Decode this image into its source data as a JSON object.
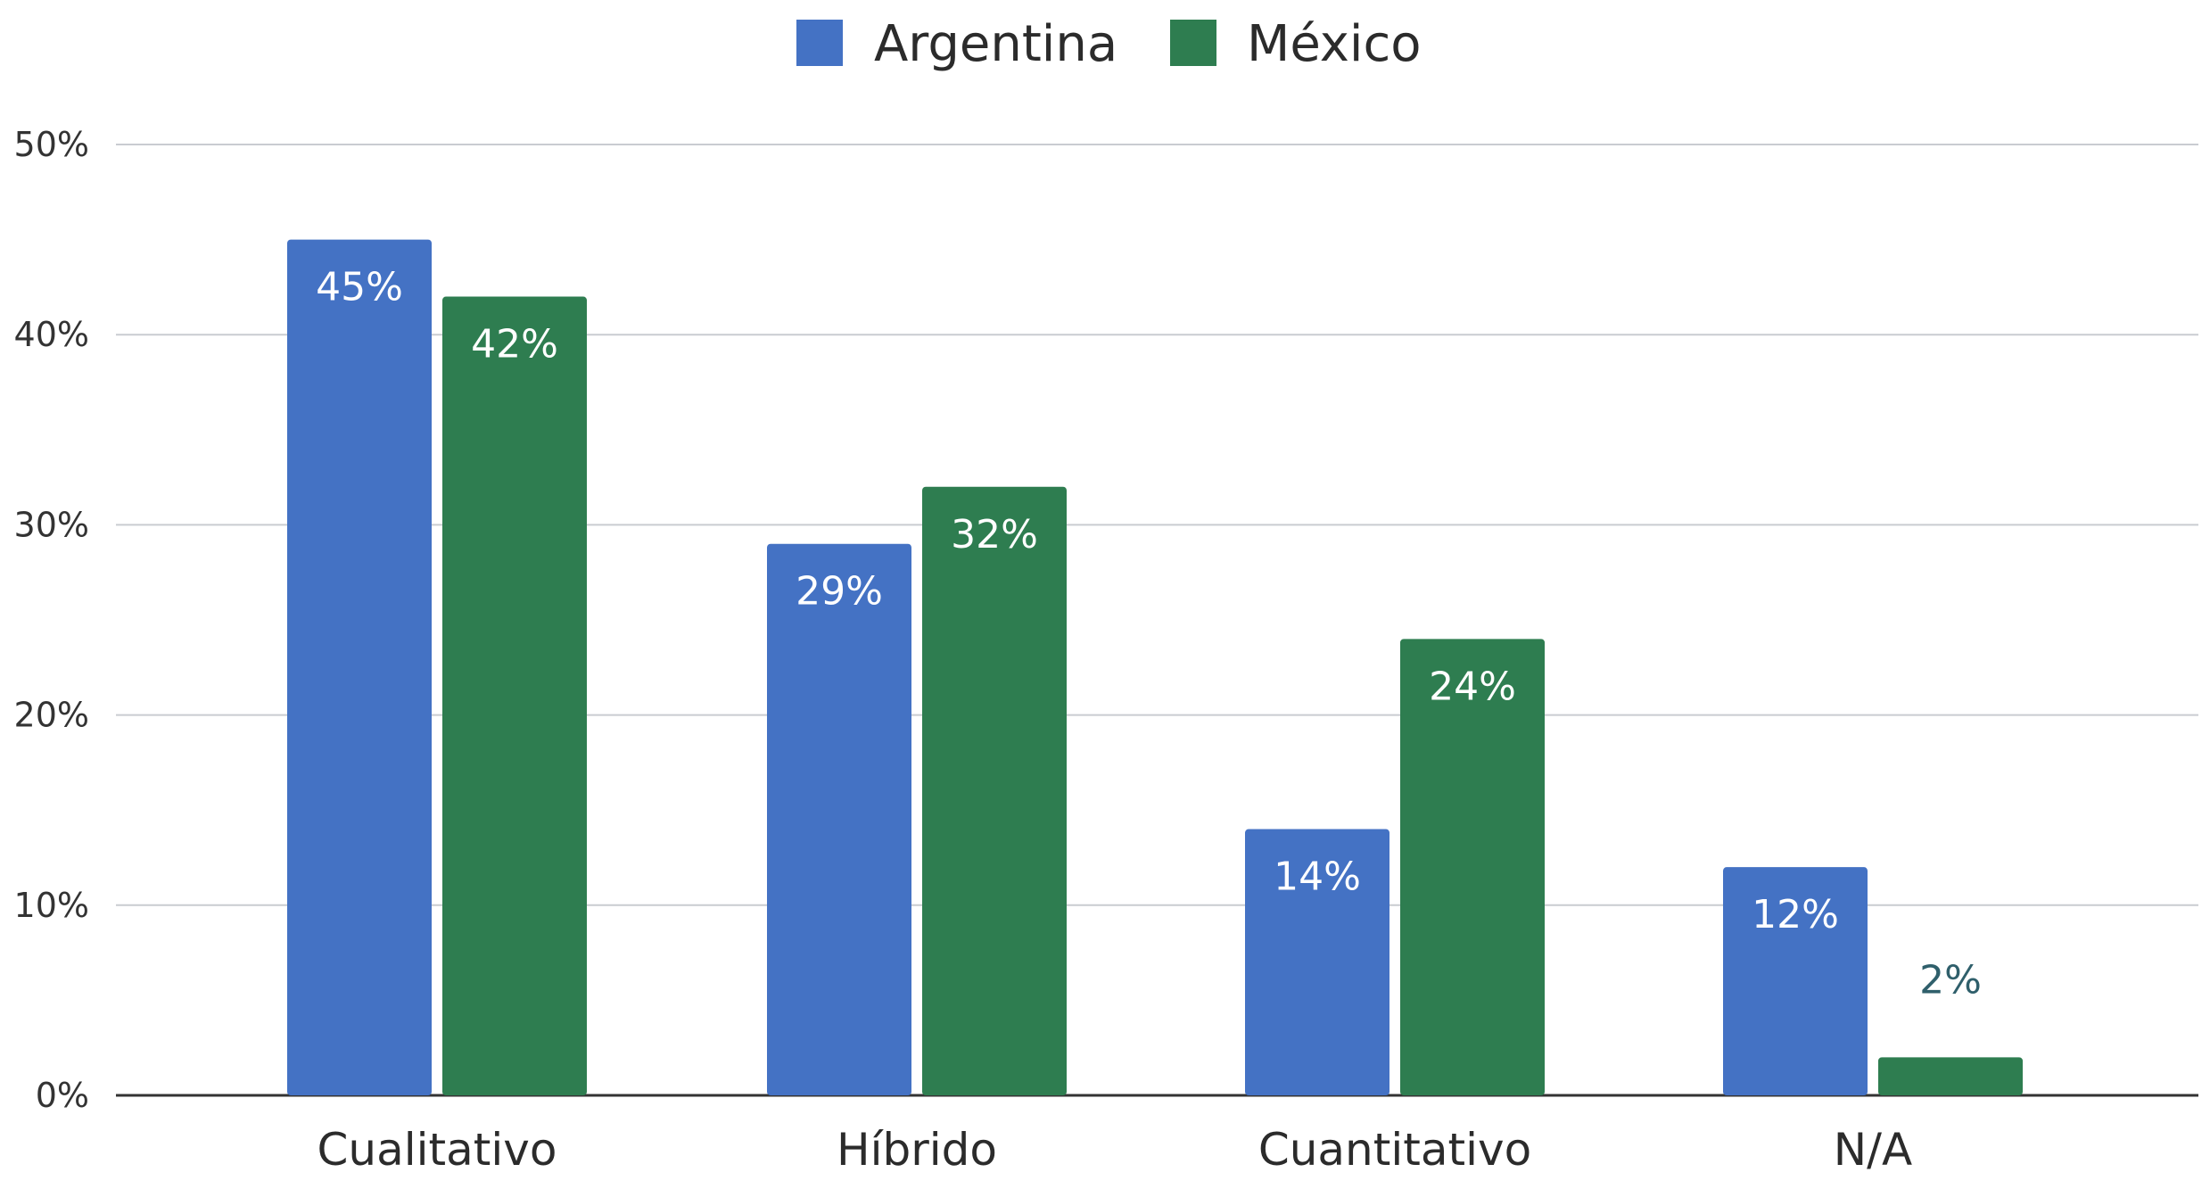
{
  "chart_data": {
    "type": "bar",
    "title": "",
    "xlabel": "",
    "ylabel": "",
    "categories": [
      "Cualitativo",
      "Híbrido",
      "Cuantitativo",
      "N/A"
    ],
    "series": [
      {
        "name": "Argentina",
        "color": "#4472c4",
        "values": [
          45,
          29,
          14,
          12
        ],
        "labels": [
          "45%",
          "29%",
          "14%",
          "12%"
        ]
      },
      {
        "name": "México",
        "color": "#2e7d50",
        "values": [
          42,
          32,
          24,
          2
        ],
        "labels": [
          "42%",
          "32%",
          "24%",
          "2%"
        ]
      }
    ],
    "ylim": [
      0,
      50
    ],
    "yticks": [
      0,
      10,
      20,
      30,
      40,
      50
    ],
    "ytick_labels": [
      "0%",
      "10%",
      "20%",
      "30%",
      "40%",
      "50%"
    ],
    "grid": true,
    "legend": "top-center"
  }
}
